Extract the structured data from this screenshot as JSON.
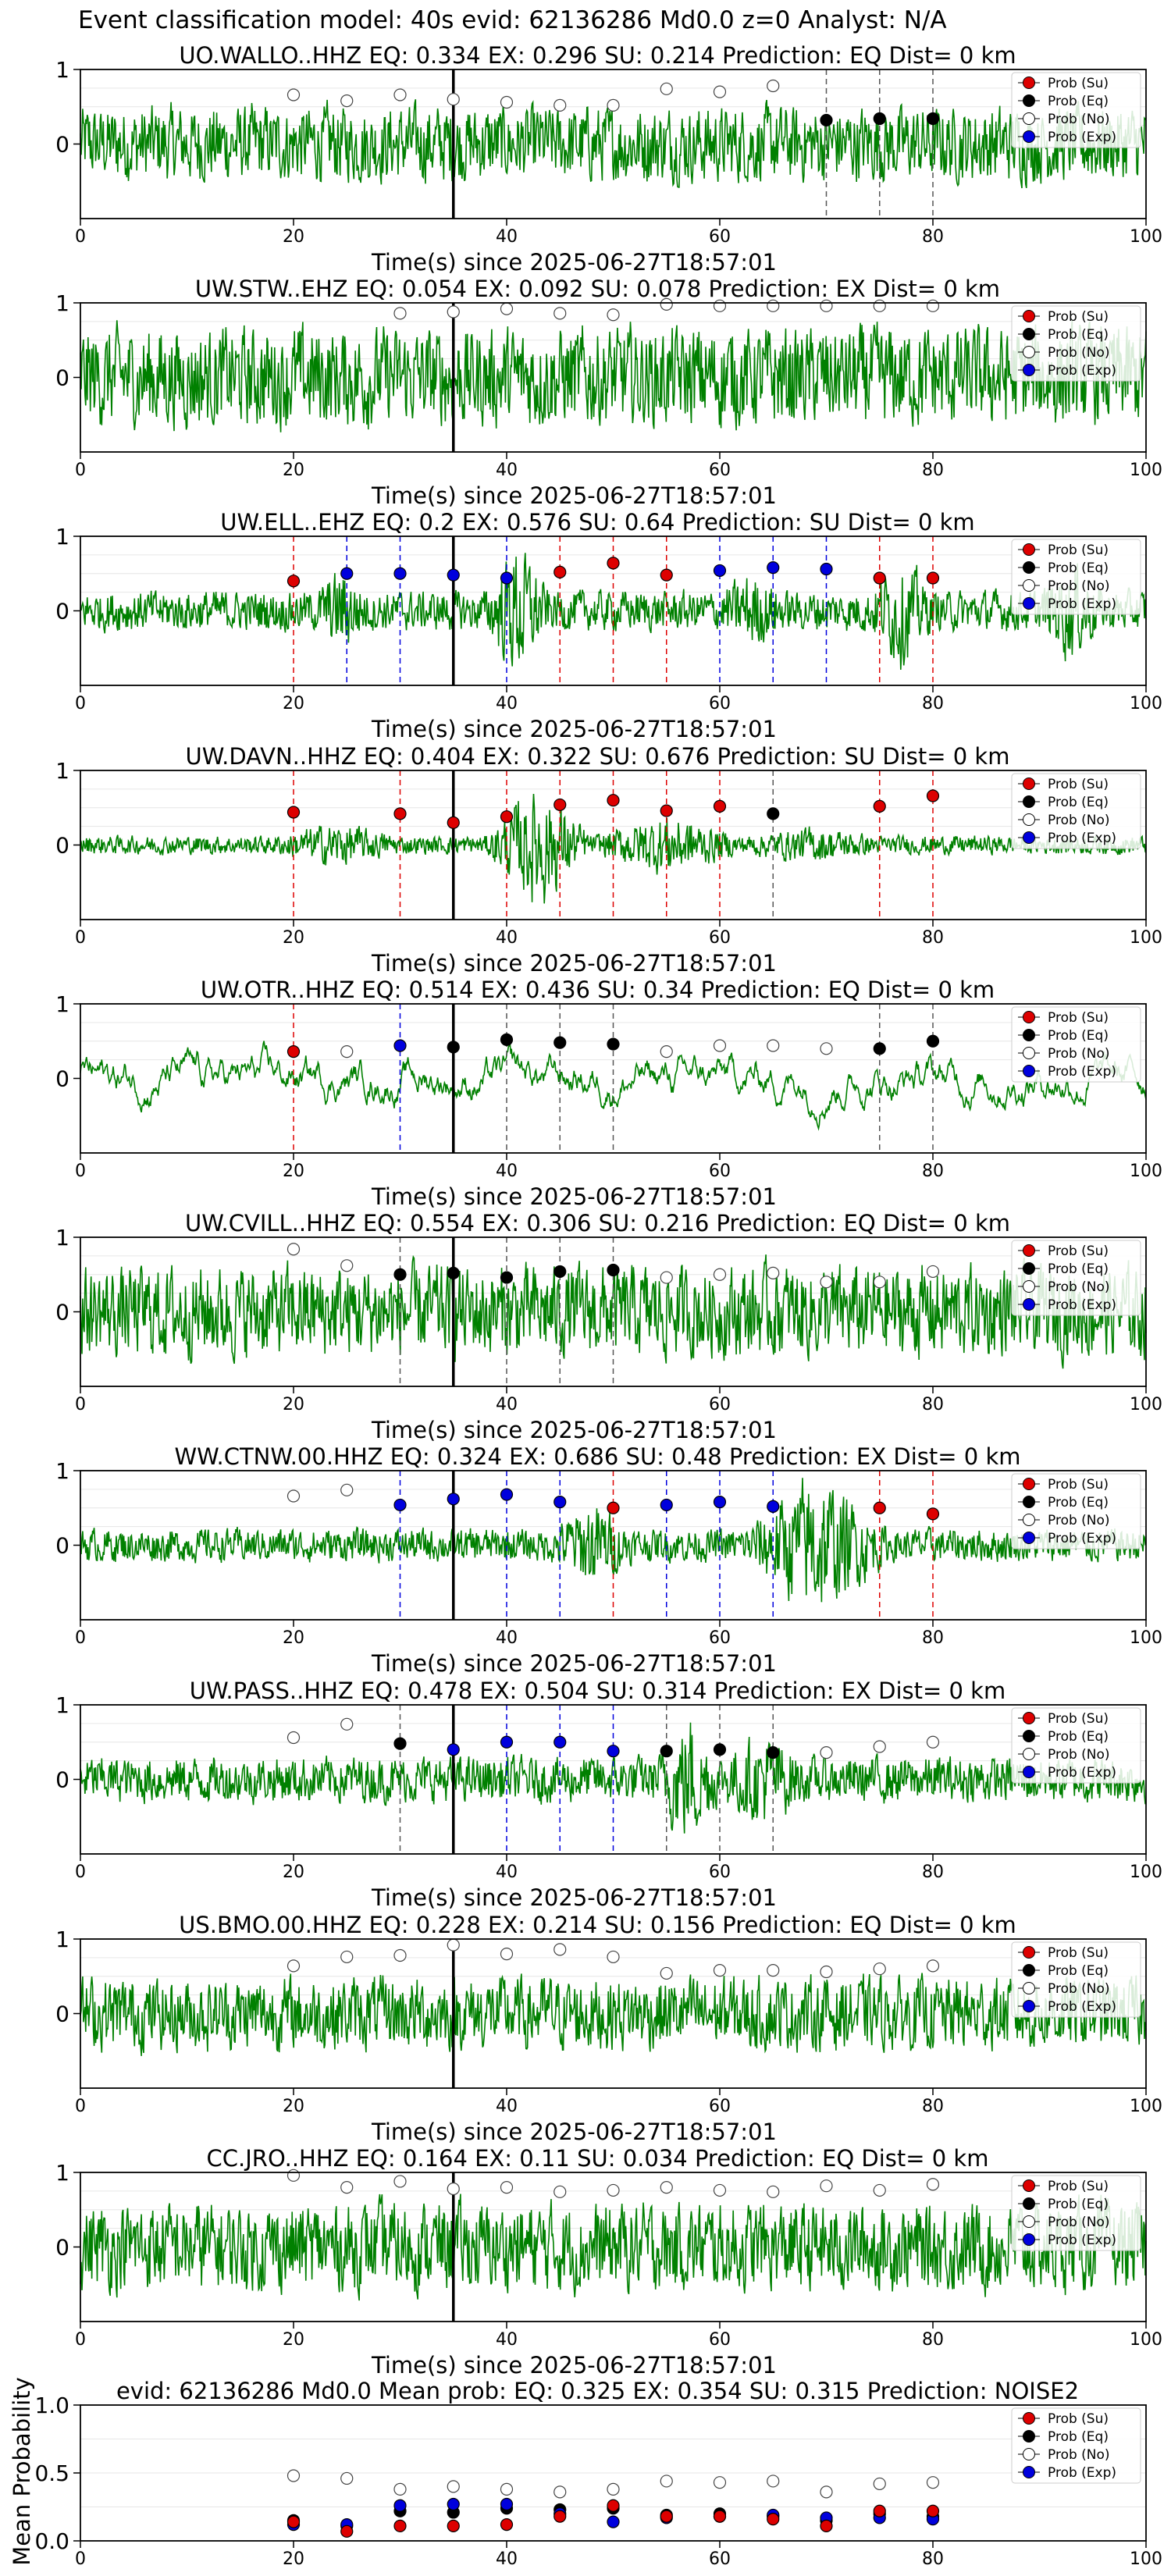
{
  "suptitle": "Event classification model: 40s evid: 62136286 Md0.0 z=0 Analyst: N/A",
  "colors": {
    "su": "#dd0000",
    "eq": "#000000",
    "no": "#ffffff",
    "exp": "#0000dd",
    "wave": "#008000",
    "axis": "#000000"
  },
  "legend_labels": [
    "Prob (Su)",
    "Prob (Eq)",
    "Prob (No)",
    "Prob (Exp)"
  ],
  "chart_data": [
    {
      "type": "line",
      "title": "UO.WALLO..HHZ   EQ: 0.334  EX: 0.296  SU: 0.214   Prediction: EQ    Dist= 0 km",
      "xlabel": "Time(s) since 2025-06-27T18:57:01",
      "xlim": [
        0,
        100
      ],
      "ylim": [
        -1,
        1
      ],
      "xticks": [
        0,
        20,
        40,
        60,
        80,
        100
      ],
      "yticks": [
        1,
        0
      ],
      "pick": 35,
      "amp": 0.42,
      "burst": [],
      "markers": [
        {
          "x": 20,
          "y": 0.66,
          "c": "no"
        },
        {
          "x": 25,
          "y": 0.58,
          "c": "no"
        },
        {
          "x": 30,
          "y": 0.66,
          "c": "no"
        },
        {
          "x": 35,
          "y": 0.6,
          "c": "no"
        },
        {
          "x": 40,
          "y": 0.56,
          "c": "no"
        },
        {
          "x": 45,
          "y": 0.52,
          "c": "no"
        },
        {
          "x": 50,
          "y": 0.52,
          "c": "no"
        },
        {
          "x": 55,
          "y": 0.74,
          "c": "no"
        },
        {
          "x": 60,
          "y": 0.7,
          "c": "no"
        },
        {
          "x": 65,
          "y": 0.78,
          "c": "no"
        },
        {
          "x": 70,
          "y": 0.32,
          "c": "eq"
        },
        {
          "x": 75,
          "y": 0.34,
          "c": "eq"
        },
        {
          "x": 80,
          "y": 0.34,
          "c": "eq"
        }
      ]
    },
    {
      "type": "line",
      "title": "UW.STW..EHZ   EQ: 0.054  EX: 0.092  SU: 0.078   Prediction: EX    Dist= 0 km",
      "xlabel": "Time(s) since 2025-06-27T18:57:01",
      "xlim": [
        0,
        100
      ],
      "ylim": [
        -1,
        1
      ],
      "xticks": [
        0,
        20,
        40,
        60,
        80,
        100
      ],
      "yticks": [
        1,
        0
      ],
      "pick": 35,
      "amp": 0.55,
      "burst": [],
      "markers": [
        {
          "x": 30,
          "y": 0.86,
          "c": "no"
        },
        {
          "x": 35,
          "y": 0.88,
          "c": "no"
        },
        {
          "x": 40,
          "y": 0.92,
          "c": "no"
        },
        {
          "x": 45,
          "y": 0.86,
          "c": "no"
        },
        {
          "x": 50,
          "y": 0.84,
          "c": "no"
        },
        {
          "x": 55,
          "y": 0.98,
          "c": "no"
        },
        {
          "x": 60,
          "y": 0.96,
          "c": "no"
        },
        {
          "x": 65,
          "y": 0.96,
          "c": "no"
        },
        {
          "x": 70,
          "y": 0.96,
          "c": "no"
        },
        {
          "x": 75,
          "y": 0.96,
          "c": "no"
        },
        {
          "x": 80,
          "y": 0.96,
          "c": "no"
        }
      ]
    },
    {
      "type": "line",
      "title": "UW.ELL..EHZ   EQ: 0.2  EX: 0.576  SU: 0.64   Prediction: SU    Dist= 0 km",
      "xlabel": "Time(s) since 2025-06-27T18:57:01",
      "xlim": [
        0,
        100
      ],
      "ylim": [
        -1,
        1
      ],
      "xticks": [
        0,
        20,
        40,
        60,
        80,
        100
      ],
      "yticks": [
        1,
        0
      ],
      "pick": 35,
      "amp": 0.22,
      "burst": [
        [
          22,
          27,
          2.2
        ],
        [
          38,
          44,
          3.6
        ],
        [
          60,
          66,
          2.0
        ],
        [
          74,
          80,
          2.8
        ],
        [
          90,
          96,
          2.6
        ]
      ],
      "markers": [
        {
          "x": 20,
          "y": 0.4,
          "c": "su"
        },
        {
          "x": 25,
          "y": 0.5,
          "c": "exp"
        },
        {
          "x": 30,
          "y": 0.5,
          "c": "exp"
        },
        {
          "x": 35,
          "y": 0.48,
          "c": "exp"
        },
        {
          "x": 40,
          "y": 0.44,
          "c": "exp"
        },
        {
          "x": 45,
          "y": 0.52,
          "c": "su"
        },
        {
          "x": 50,
          "y": 0.64,
          "c": "su"
        },
        {
          "x": 55,
          "y": 0.48,
          "c": "su"
        },
        {
          "x": 60,
          "y": 0.54,
          "c": "exp"
        },
        {
          "x": 65,
          "y": 0.58,
          "c": "exp"
        },
        {
          "x": 70,
          "y": 0.56,
          "c": "exp"
        },
        {
          "x": 75,
          "y": 0.44,
          "c": "su"
        },
        {
          "x": 80,
          "y": 0.44,
          "c": "su"
        }
      ]
    },
    {
      "type": "line",
      "title": "UW.DAVN..HHZ   EQ: 0.404  EX: 0.322  SU: 0.676   Prediction: SU    Dist= 0 km",
      "xlabel": "Time(s) since 2025-06-27T18:57:01",
      "xlim": [
        0,
        100
      ],
      "ylim": [
        -1,
        1
      ],
      "xticks": [
        0,
        20,
        40,
        60,
        80,
        100
      ],
      "yticks": [
        1,
        0
      ],
      "pick": 35,
      "amp": 0.1,
      "burst": [
        [
          18,
          30,
          2.5
        ],
        [
          38,
          48,
          7.0
        ],
        [
          48,
          62,
          3.5
        ],
        [
          62,
          75,
          2.0
        ]
      ],
      "markers": [
        {
          "x": 20,
          "y": 0.44,
          "c": "su"
        },
        {
          "x": 30,
          "y": 0.42,
          "c": "su"
        },
        {
          "x": 35,
          "y": 0.3,
          "c": "su"
        },
        {
          "x": 40,
          "y": 0.38,
          "c": "su"
        },
        {
          "x": 45,
          "y": 0.54,
          "c": "su"
        },
        {
          "x": 50,
          "y": 0.6,
          "c": "su"
        },
        {
          "x": 55,
          "y": 0.46,
          "c": "su"
        },
        {
          "x": 60,
          "y": 0.52,
          "c": "su"
        },
        {
          "x": 65,
          "y": 0.42,
          "c": "eq"
        },
        {
          "x": 75,
          "y": 0.52,
          "c": "su"
        },
        {
          "x": 80,
          "y": 0.66,
          "c": "su"
        }
      ]
    },
    {
      "type": "line",
      "title": "UW.OTR..HHZ   EQ: 0.514  EX: 0.436  SU: 0.34   Prediction: EQ    Dist= 0 km",
      "xlabel": "Time(s) since 2025-06-27T18:57:01",
      "xlim": [
        0,
        100
      ],
      "ylim": [
        -1,
        1
      ],
      "xticks": [
        0,
        20,
        40,
        60,
        80,
        100
      ],
      "yticks": [
        1,
        0
      ],
      "pick": 35,
      "amp": 0.55,
      "burst": [],
      "markers": [
        {
          "x": 20,
          "y": 0.36,
          "c": "su"
        },
        {
          "x": 25,
          "y": 0.36,
          "c": "no"
        },
        {
          "x": 30,
          "y": 0.44,
          "c": "exp"
        },
        {
          "x": 35,
          "y": 0.42,
          "c": "eq"
        },
        {
          "x": 40,
          "y": 0.52,
          "c": "eq"
        },
        {
          "x": 45,
          "y": 0.48,
          "c": "eq"
        },
        {
          "x": 50,
          "y": 0.46,
          "c": "eq"
        },
        {
          "x": 55,
          "y": 0.36,
          "c": "no"
        },
        {
          "x": 60,
          "y": 0.44,
          "c": "no"
        },
        {
          "x": 65,
          "y": 0.44,
          "c": "no"
        },
        {
          "x": 70,
          "y": 0.4,
          "c": "no"
        },
        {
          "x": 75,
          "y": 0.4,
          "c": "eq"
        },
        {
          "x": 80,
          "y": 0.5,
          "c": "eq"
        }
      ]
    },
    {
      "type": "line",
      "title": "UW.CVILL..HHZ   EQ: 0.554  EX: 0.306  SU: 0.216   Prediction: EQ    Dist= 0 km",
      "xlabel": "Time(s) since 2025-06-27T18:57:01",
      "xlim": [
        0,
        100
      ],
      "ylim": [
        -1,
        1
      ],
      "xticks": [
        0,
        20,
        40,
        60,
        80,
        100
      ],
      "yticks": [
        1,
        0
      ],
      "pick": 35,
      "amp": 0.5,
      "burst": [],
      "markers": [
        {
          "x": 20,
          "y": 0.84,
          "c": "no"
        },
        {
          "x": 25,
          "y": 0.62,
          "c": "no"
        },
        {
          "x": 30,
          "y": 0.5,
          "c": "eq"
        },
        {
          "x": 35,
          "y": 0.52,
          "c": "eq"
        },
        {
          "x": 40,
          "y": 0.46,
          "c": "eq"
        },
        {
          "x": 45,
          "y": 0.54,
          "c": "eq"
        },
        {
          "x": 50,
          "y": 0.56,
          "c": "eq"
        },
        {
          "x": 55,
          "y": 0.46,
          "c": "no"
        },
        {
          "x": 60,
          "y": 0.5,
          "c": "no"
        },
        {
          "x": 65,
          "y": 0.52,
          "c": "no"
        },
        {
          "x": 70,
          "y": 0.4,
          "c": "no"
        },
        {
          "x": 75,
          "y": 0.4,
          "c": "no"
        },
        {
          "x": 80,
          "y": 0.54,
          "c": "no"
        }
      ]
    },
    {
      "type": "line",
      "title": "WW.CTNW.00.HHZ   EQ: 0.324  EX: 0.686  SU: 0.48   Prediction: EX    Dist= 0 km",
      "xlabel": "Time(s) since 2025-06-27T18:57:01",
      "xlim": [
        0,
        100
      ],
      "ylim": [
        -1,
        1
      ],
      "xticks": [
        0,
        20,
        40,
        60,
        80,
        100
      ],
      "yticks": [
        1,
        0
      ],
      "pick": 35,
      "amp": 0.18,
      "burst": [
        [
          44,
          52,
          2.8
        ],
        [
          62,
          76,
          4.5
        ]
      ],
      "markers": [
        {
          "x": 20,
          "y": 0.66,
          "c": "no"
        },
        {
          "x": 25,
          "y": 0.74,
          "c": "no"
        },
        {
          "x": 30,
          "y": 0.54,
          "c": "exp"
        },
        {
          "x": 35,
          "y": 0.62,
          "c": "exp"
        },
        {
          "x": 40,
          "y": 0.68,
          "c": "exp"
        },
        {
          "x": 45,
          "y": 0.58,
          "c": "exp"
        },
        {
          "x": 50,
          "y": 0.5,
          "c": "su"
        },
        {
          "x": 55,
          "y": 0.54,
          "c": "exp"
        },
        {
          "x": 60,
          "y": 0.58,
          "c": "exp"
        },
        {
          "x": 65,
          "y": 0.52,
          "c": "exp"
        },
        {
          "x": 75,
          "y": 0.5,
          "c": "su"
        },
        {
          "x": 80,
          "y": 0.42,
          "c": "su"
        }
      ]
    },
    {
      "type": "line",
      "title": "UW.PASS..HHZ   EQ: 0.478  EX: 0.504  SU: 0.314   Prediction: EX    Dist= 0 km",
      "xlabel": "Time(s) since 2025-06-27T18:57:01",
      "xlim": [
        0,
        100
      ],
      "ylim": [
        -1,
        1
      ],
      "xticks": [
        0,
        20,
        40,
        60,
        80,
        100
      ],
      "yticks": [
        1,
        0
      ],
      "pick": 35,
      "amp": 0.25,
      "burst": [
        [
          54,
          60,
          3.0
        ],
        [
          60,
          68,
          2.2
        ]
      ],
      "markers": [
        {
          "x": 20,
          "y": 0.56,
          "c": "no"
        },
        {
          "x": 25,
          "y": 0.74,
          "c": "no"
        },
        {
          "x": 30,
          "y": 0.48,
          "c": "eq"
        },
        {
          "x": 35,
          "y": 0.4,
          "c": "exp"
        },
        {
          "x": 40,
          "y": 0.5,
          "c": "exp"
        },
        {
          "x": 45,
          "y": 0.5,
          "c": "exp"
        },
        {
          "x": 50,
          "y": 0.38,
          "c": "exp"
        },
        {
          "x": 55,
          "y": 0.38,
          "c": "eq"
        },
        {
          "x": 60,
          "y": 0.4,
          "c": "eq"
        },
        {
          "x": 65,
          "y": 0.36,
          "c": "eq"
        },
        {
          "x": 70,
          "y": 0.36,
          "c": "no"
        },
        {
          "x": 75,
          "y": 0.44,
          "c": "no"
        },
        {
          "x": 80,
          "y": 0.5,
          "c": "no"
        }
      ]
    },
    {
      "type": "line",
      "title": "US.BMO.00.HHZ   EQ: 0.228  EX: 0.214  SU: 0.156   Prediction: EQ    Dist= 0 km",
      "xlabel": "Time(s) since 2025-06-27T18:57:01",
      "xlim": [
        0,
        100
      ],
      "ylim": [
        -1,
        1
      ],
      "xticks": [
        0,
        20,
        40,
        60,
        80,
        100
      ],
      "yticks": [
        1,
        0
      ],
      "pick": 35,
      "amp": 0.4,
      "burst": [],
      "markers": [
        {
          "x": 20,
          "y": 0.64,
          "c": "no"
        },
        {
          "x": 25,
          "y": 0.76,
          "c": "no"
        },
        {
          "x": 30,
          "y": 0.78,
          "c": "no"
        },
        {
          "x": 35,
          "y": 0.92,
          "c": "no"
        },
        {
          "x": 40,
          "y": 0.8,
          "c": "no"
        },
        {
          "x": 45,
          "y": 0.86,
          "c": "no"
        },
        {
          "x": 50,
          "y": 0.76,
          "c": "no"
        },
        {
          "x": 55,
          "y": 0.54,
          "c": "no"
        },
        {
          "x": 60,
          "y": 0.58,
          "c": "no"
        },
        {
          "x": 65,
          "y": 0.58,
          "c": "no"
        },
        {
          "x": 70,
          "y": 0.56,
          "c": "no"
        },
        {
          "x": 75,
          "y": 0.6,
          "c": "no"
        },
        {
          "x": 80,
          "y": 0.64,
          "c": "no"
        }
      ]
    },
    {
      "type": "line",
      "title": "CC.JRO..HHZ   EQ: 0.164  EX: 0.11  SU: 0.034   Prediction: EQ    Dist= 0 km",
      "xlabel": "Time(s) since 2025-06-27T18:57:01",
      "xlim": [
        0,
        100
      ],
      "ylim": [
        -1,
        1
      ],
      "xticks": [
        0,
        20,
        40,
        60,
        80,
        100
      ],
      "yticks": [
        1,
        0
      ],
      "pick": 35,
      "amp": 0.48,
      "burst": [],
      "markers": [
        {
          "x": 20,
          "y": 0.96,
          "c": "no"
        },
        {
          "x": 25,
          "y": 0.8,
          "c": "no"
        },
        {
          "x": 30,
          "y": 0.88,
          "c": "no"
        },
        {
          "x": 35,
          "y": 0.78,
          "c": "no"
        },
        {
          "x": 40,
          "y": 0.8,
          "c": "no"
        },
        {
          "x": 45,
          "y": 0.74,
          "c": "no"
        },
        {
          "x": 50,
          "y": 0.76,
          "c": "no"
        },
        {
          "x": 55,
          "y": 0.8,
          "c": "no"
        },
        {
          "x": 60,
          "y": 0.76,
          "c": "no"
        },
        {
          "x": 65,
          "y": 0.74,
          "c": "no"
        },
        {
          "x": 70,
          "y": 0.82,
          "c": "no"
        },
        {
          "x": 75,
          "y": 0.76,
          "c": "no"
        },
        {
          "x": 80,
          "y": 0.84,
          "c": "no"
        }
      ]
    },
    {
      "type": "scatter",
      "title": "evid: 62136286  Md0.0   Mean prob:   EQ: 0.325  EX: 0.354  SU: 0.315   Prediction: NOISE2",
      "xlabel": "",
      "ylabel": "Mean Probability",
      "xlim": [
        0,
        100
      ],
      "ylim": [
        0,
        1
      ],
      "xticks": [
        0,
        20,
        40,
        60,
        80,
        100
      ],
      "yticks": [
        0.0,
        0.5,
        1.0
      ],
      "yticklabels": [
        "0.0",
        "0.5",
        "1.0"
      ],
      "x": [
        20,
        25,
        30,
        35,
        40,
        45,
        50,
        55,
        60,
        65,
        70,
        75,
        80
      ],
      "series": [
        {
          "name": "Prob (No)",
          "c": "no",
          "values": [
            0.48,
            0.46,
            0.38,
            0.4,
            0.38,
            0.36,
            0.38,
            0.44,
            0.43,
            0.44,
            0.36,
            0.42,
            0.43
          ]
        },
        {
          "name": "Prob (Eq)",
          "c": "eq",
          "values": [
            0.15,
            0.11,
            0.22,
            0.21,
            0.24,
            0.23,
            0.24,
            0.19,
            0.2,
            0.18,
            0.15,
            0.2,
            0.18
          ]
        },
        {
          "name": "Prob (Exp)",
          "c": "exp",
          "values": [
            0.12,
            0.12,
            0.26,
            0.27,
            0.27,
            0.2,
            0.14,
            0.17,
            0.18,
            0.19,
            0.17,
            0.17,
            0.16
          ]
        },
        {
          "name": "Prob (Su)",
          "c": "su",
          "values": [
            0.14,
            0.07,
            0.11,
            0.11,
            0.12,
            0.18,
            0.26,
            0.18,
            0.18,
            0.16,
            0.11,
            0.22,
            0.22
          ]
        }
      ]
    }
  ]
}
